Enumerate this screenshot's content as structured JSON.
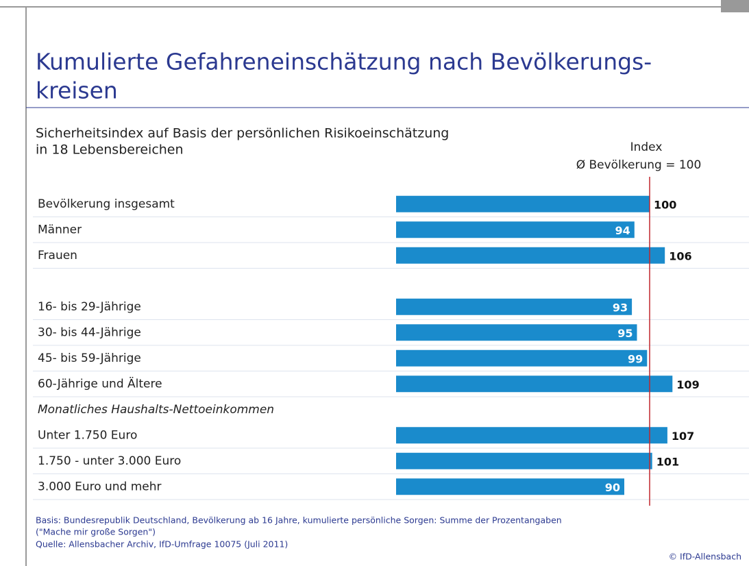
{
  "chart_data": {
    "type": "bar",
    "title": "Kumulierte Gefahreneinschätzung nach Bevölkerungs-kreisen",
    "title_lines": [
      "Kumulierte Gefahreneinschätzung nach Bevölkerungs-",
      "kreisen"
    ],
    "subtitle_lines": [
      "Sicherheitsindex auf Basis der persönlichen Risikoeinschätzung",
      "in 18 Lebensbereichen"
    ],
    "index_label_lines": [
      "Index",
      "Ø Bevölkerung = 100"
    ],
    "reference_line": 100,
    "categories": [
      "Bevölkerung insgesamt",
      "Männer",
      "Frauen",
      null,
      "16- bis 29-Jährige",
      "30- bis 44-Jährige",
      "45- bis 59-Jährige",
      "60-Jährige und Ältere",
      "Monatliches Haushalts-Nettoeinkommen",
      "Unter 1.750 Euro",
      "1.750 - unter 3.000 Euro",
      "3.000 Euro und mehr"
    ],
    "values": [
      100,
      94,
      106,
      null,
      93,
      95,
      99,
      109,
      null,
      107,
      101,
      90
    ],
    "color": "#1a8bcc",
    "reference_color": "#c0272d",
    "notes": [
      "Basis: Bundesrepublik Deutschland, Bevölkerung ab 16 Jahre, kumulierte persönliche Sorgen: Summe der Prozentangaben",
      "(\"Mache mir große Sorgen\")",
      "Quelle: Allensbacher Archiv, IfD-Umfrage 10075 (Juli 2011)"
    ],
    "copyright": "© IfD-Allensbach"
  }
}
